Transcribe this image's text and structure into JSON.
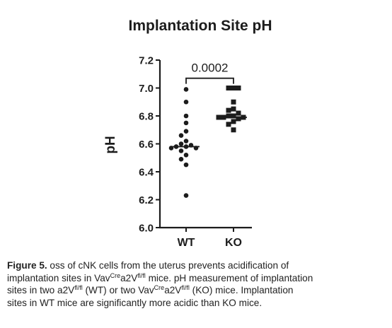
{
  "chart_data": {
    "type": "scatter",
    "title": "Implantation Site pH",
    "ylabel": "pH",
    "xlabel": "",
    "ylim": [
      6.0,
      7.2
    ],
    "yticks": [
      "6.0",
      "6.2",
      "6.4",
      "6.6",
      "6.8",
      "7.0",
      "7.2"
    ],
    "categories": [
      "WT",
      "KO"
    ],
    "series": [
      {
        "category": "WT",
        "marker": "circle",
        "values": [
          6.99,
          6.9,
          6.8,
          6.75,
          6.69,
          6.66,
          6.62,
          6.6,
          6.59,
          6.58,
          6.58,
          6.57,
          6.57,
          6.55,
          6.52,
          6.49,
          6.45,
          6.23
        ],
        "median": 6.58
      },
      {
        "category": "KO",
        "marker": "square",
        "values": [
          7.0,
          7.0,
          7.0,
          6.9,
          6.85,
          6.84,
          6.82,
          6.8,
          6.8,
          6.79,
          6.79,
          6.79,
          6.78,
          6.76,
          6.74,
          6.7
        ],
        "median": 6.79
      }
    ],
    "annotations": [
      {
        "text": "0.0002",
        "between": [
          "WT",
          "KO"
        ],
        "y": 7.07
      }
    ],
    "colors": {
      "points": "#1c1c1c",
      "axis": "#1c1c1c"
    }
  },
  "caption": {
    "label": "Figure 5.",
    "line1_text": " oss of cNK cells from the uterus prevents acidification of",
    "line2_pre": "implantation sites in Vav",
    "line2_sup1": "Cre",
    "line2_mid": "a2V",
    "line2_sup2": "fl/fl",
    "line2_post": " mice. pH measurement of implantation",
    "line3_pre": "sites in two a2V",
    "line3_sup1": "fl/fl",
    "line3_mid": " (WT) or two Vav",
    "line3_sup2": "Cre",
    "line3_mid2": "a2V",
    "line3_sup3": "fl/fl",
    "line3_post": " (KO) mice. Implantation",
    "line4": "sites in WT mice are significantly more acidic than KO mice."
  }
}
